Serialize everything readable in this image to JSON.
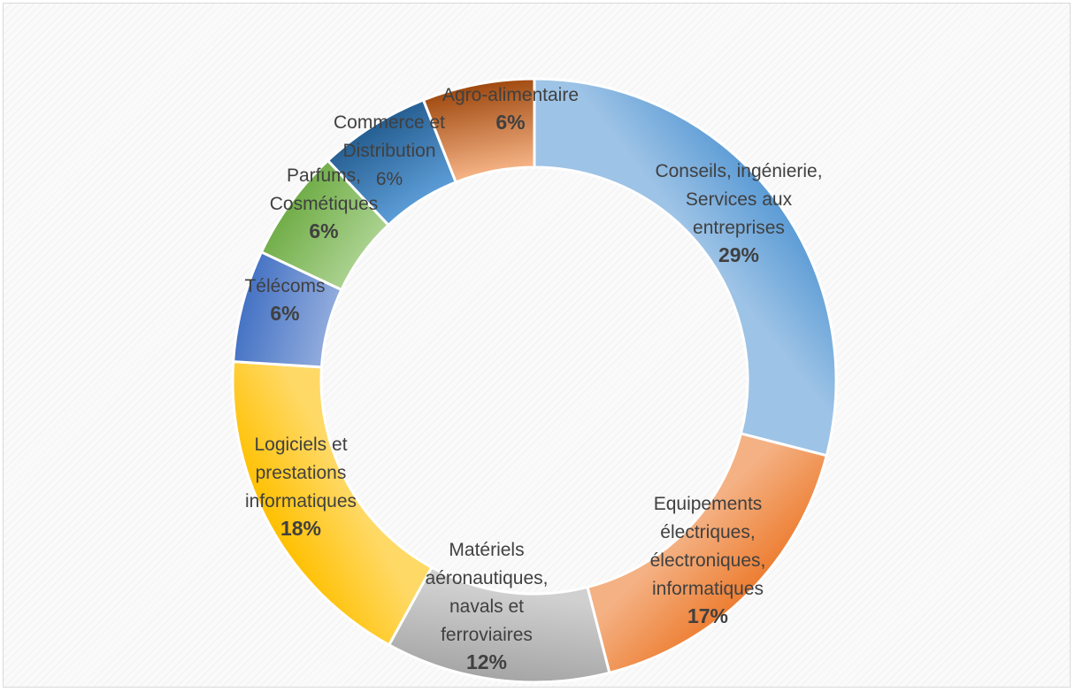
{
  "chart_data": {
    "type": "pie",
    "variant": "doughnut",
    "title": "",
    "legend": "none",
    "slices": [
      {
        "label": [
          "Conseils, ingénierie,",
          "Services aux",
          "entreprises"
        ],
        "value": 29,
        "value_label": "29%",
        "color": "#5b9bd5",
        "color_light": "#9dc3e6"
      },
      {
        "label": [
          "Equipements",
          "électriques,",
          "électroniques,",
          "informatiques"
        ],
        "value": 17,
        "value_label": "17%",
        "color": "#ed7d31",
        "color_light": "#f4b183"
      },
      {
        "label": [
          "Matériels",
          "aéronautiques,",
          "navals et",
          "ferroviaires"
        ],
        "value": 12,
        "value_label": "12%",
        "color": "#a5a5a5",
        "color_light": "#d0d0d0"
      },
      {
        "label": [
          "Logiciels et",
          "prestations",
          "informatiques"
        ],
        "value": 18,
        "value_label": "18%",
        "color": "#ffc000",
        "color_light": "#ffd966"
      },
      {
        "label": [
          "Télécoms"
        ],
        "value": 6,
        "value_label": "6%",
        "color": "#4472c4",
        "color_light": "#8faadc"
      },
      {
        "label": [
          "Parfums,",
          "Cosmétiques"
        ],
        "value": 6,
        "value_label": "6%",
        "color": "#70ad47",
        "color_light": "#a9d18e"
      },
      {
        "label": [
          "Commerce et",
          "Distribution"
        ],
        "value": 6,
        "value_label": "6%",
        "value_bold": false,
        "color": "#255e91",
        "color_light": "#5b9bd5"
      },
      {
        "label": [
          "Agro-alimentaire"
        ],
        "value": 6,
        "value_label": "6%",
        "color": "#9e480e",
        "color_light": "#f4b183"
      }
    ]
  }
}
